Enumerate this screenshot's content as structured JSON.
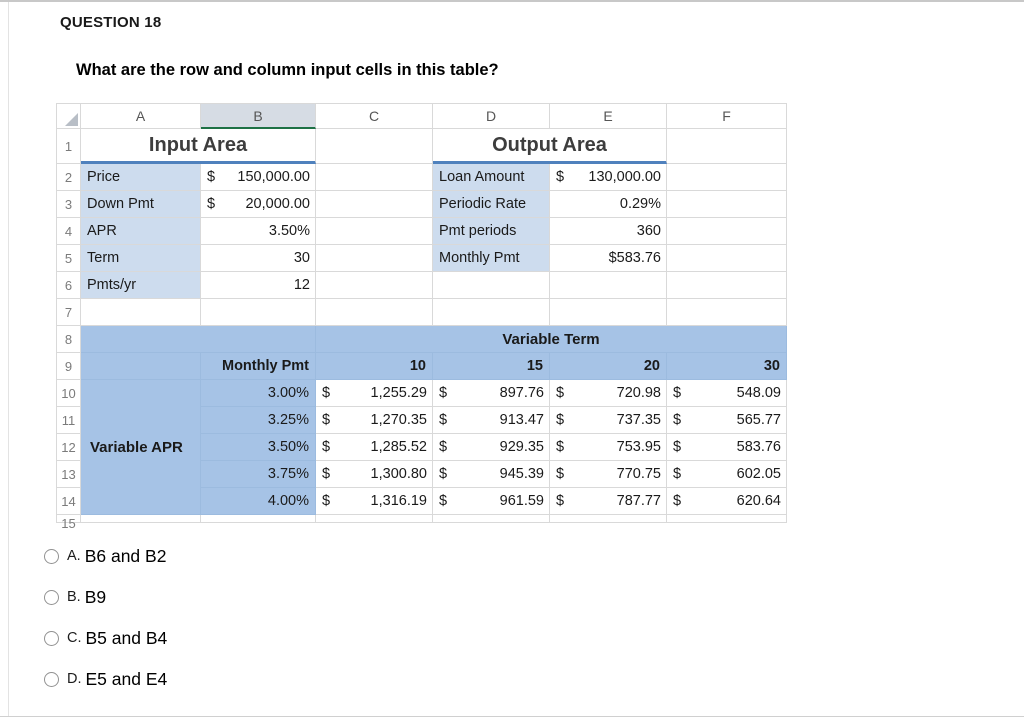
{
  "question": {
    "label": "QUESTION 18",
    "text": "What are the row and column input cells in this table?"
  },
  "colors": {
    "band_fill": "#A6C3E6",
    "label_fill": "#CDDCEE",
    "title_underline": "#4F81BD",
    "selected_col_fill": "#D6DCE4",
    "selected_col_underline": "#1E7145",
    "gridline": "#D9D9D9"
  },
  "sheet": {
    "col_headers": [
      "A",
      "B",
      "C",
      "D",
      "E",
      "F"
    ],
    "row_numbers": [
      "1",
      "2",
      "3",
      "4",
      "5",
      "6",
      "7",
      "8",
      "9",
      "10",
      "11",
      "12",
      "13",
      "14",
      "15"
    ],
    "input_area": {
      "title": "Input Area",
      "rows": [
        {
          "label": "Price",
          "dollar": "$",
          "value": "150,000.00"
        },
        {
          "label": "Down Pmt",
          "dollar": "$",
          "value": "20,000.00"
        },
        {
          "label": "APR",
          "value": "3.50%"
        },
        {
          "label": "Term",
          "value": "30"
        },
        {
          "label": "Pmts/yr",
          "value": "12"
        }
      ]
    },
    "output_area": {
      "title": "Output Area",
      "rows": [
        {
          "label": "Loan Amount",
          "dollar": "$",
          "value": "130,000.00"
        },
        {
          "label": "Periodic Rate",
          "value": "0.29%"
        },
        {
          "label": "Pmt periods",
          "value": "360"
        },
        {
          "label": "Monthly Pmt",
          "value": "$583.76"
        }
      ]
    },
    "table": {
      "title": "Variable Term",
      "col_header_label": "Monthly Pmt",
      "row_header_label": "Variable APR",
      "dollar": "$",
      "col_values": [
        "10",
        "15",
        "20",
        "30"
      ],
      "row_values": [
        "3.00%",
        "3.25%",
        "3.50%",
        "3.75%",
        "4.00%"
      ],
      "cells": [
        [
          "1,255.29",
          "897.76",
          "720.98",
          "548.09"
        ],
        [
          "1,270.35",
          "913.47",
          "737.35",
          "565.77"
        ],
        [
          "1,285.52",
          "929.35",
          "753.95",
          "583.76"
        ],
        [
          "1,300.80",
          "945.39",
          "770.75",
          "602.05"
        ],
        [
          "1,316.19",
          "961.59",
          "787.77",
          "620.64"
        ]
      ]
    }
  },
  "options": [
    {
      "prefix": "A.",
      "text": "B6 and B2"
    },
    {
      "prefix": "B.",
      "text": "B9"
    },
    {
      "prefix": "C.",
      "text": "B5 and B4"
    },
    {
      "prefix": "D.",
      "text": "E5 and E4"
    }
  ]
}
